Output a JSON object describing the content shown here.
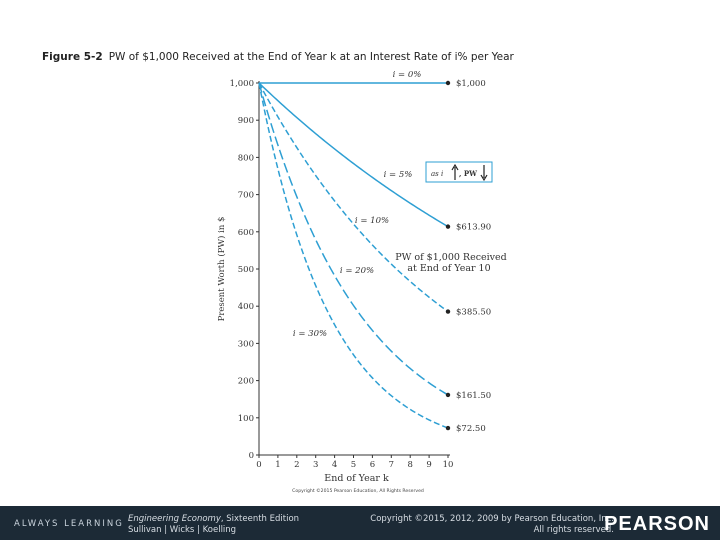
{
  "caption": {
    "figure_label": "Figure 5-2",
    "title": "PW of $1,000 Received at the End of Year k at an Interest Rate of i% per Year"
  },
  "chart_data": {
    "type": "line",
    "title": "PW of $1,000 Received at the End of Year k at an Interest Rate of i% per Year",
    "xlabel": "End of Year k",
    "ylabel": "Present Worth (PW) in $",
    "xlim": [
      0,
      10
    ],
    "ylim": [
      0,
      1000
    ],
    "x_ticks": [
      "0",
      "1",
      "2",
      "3",
      "4",
      "5",
      "6",
      "7",
      "8",
      "9",
      "10"
    ],
    "y_ticks": [
      "0",
      "100",
      "200",
      "300",
      "400",
      "500",
      "600",
      "700",
      "800",
      "900",
      "1,000"
    ],
    "x": [
      0,
      1,
      2,
      3,
      4,
      5,
      6,
      7,
      8,
      9,
      10
    ],
    "series": [
      {
        "name": "i = 0%",
        "dash": "solid",
        "values": [
          1000,
          1000,
          1000,
          1000,
          1000,
          1000,
          1000,
          1000,
          1000,
          1000,
          1000
        ],
        "end_label": "$1,000"
      },
      {
        "name": "i = 5%",
        "dash": "solid",
        "values": [
          1000,
          952.38,
          907.03,
          863.84,
          822.7,
          783.53,
          746.22,
          710.68,
          676.84,
          644.61,
          613.91
        ],
        "end_label": "$613.90"
      },
      {
        "name": "i = 10%",
        "dash": "dash",
        "values": [
          1000,
          909.09,
          826.45,
          751.31,
          683.01,
          620.92,
          564.47,
          513.16,
          466.51,
          424.1,
          385.54
        ],
        "end_label": "$385.50"
      },
      {
        "name": "i = 20%",
        "dash": "longdash",
        "values": [
          1000,
          833.33,
          694.44,
          578.7,
          482.25,
          401.88,
          334.9,
          279.08,
          232.57,
          193.81,
          161.51
        ],
        "end_label": "$161.50"
      },
      {
        "name": "i = 30%",
        "dash": "dash",
        "values": [
          1000,
          769.23,
          591.72,
          455.17,
          350.13,
          269.33,
          207.18,
          159.37,
          122.59,
          94.3,
          72.54
        ],
        "end_label": "$72.50"
      }
    ],
    "annotations": {
      "box_text_left": "as i",
      "box_text_right": ", PW",
      "pw_note_line1": "PW of $1,000 Received",
      "pw_note_line2": "at End of Year 10",
      "copyright": "Copyright ©2015 Pearson Education, All Rights Reserved"
    },
    "colors": {
      "line": "#2e9fd3",
      "axis": "#333333",
      "dot": "#222222",
      "box": "#2e9fd3"
    }
  },
  "footer": {
    "brand": "ALWAYS LEARNING",
    "book_title": "Engineering Economy",
    "book_edition": ", Sixteenth Edition",
    "authors": "Sullivan | Wicks | Koelling",
    "copyright_line1": "Copyright ©2015, 2012, 2009 by Pearson Education, Inc.",
    "copyright_line2": "All rights reserved.",
    "publisher": "PEARSON"
  }
}
